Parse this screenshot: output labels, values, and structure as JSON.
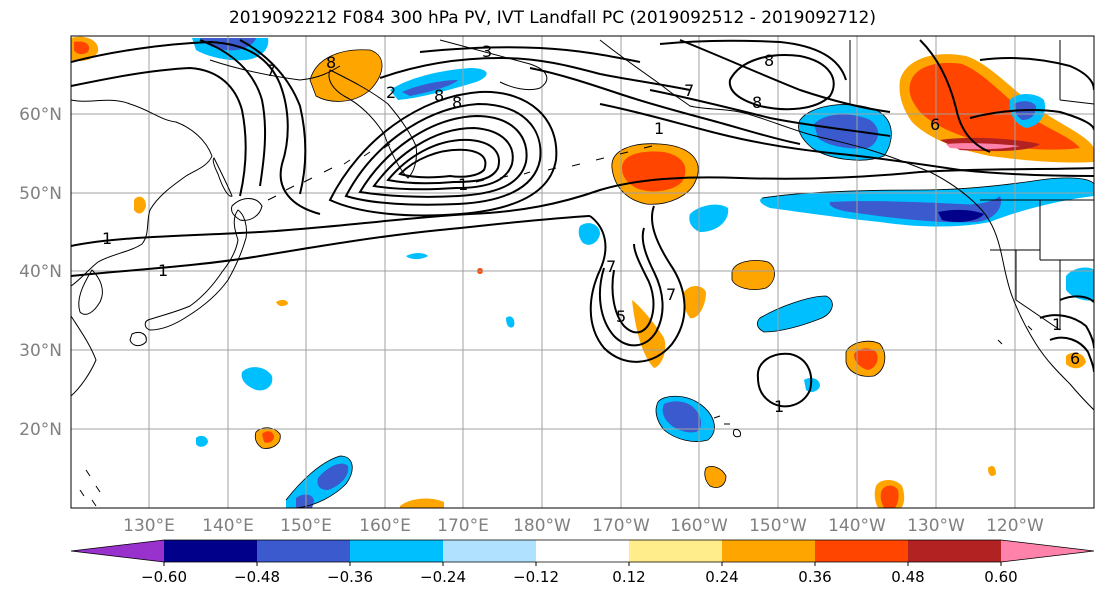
{
  "title": "2019092212 F084 300 hPa PV, IVT Landfall PC (2019092512 - 2019092712)",
  "lat_labels": [
    "60°N",
    "50°N",
    "40°N",
    "30°N",
    "20°N"
  ],
  "lon_labels": [
    "130°E",
    "140°E",
    "150°E",
    "160°E",
    "170°E",
    "180°W",
    "170°W",
    "160°W",
    "150°W",
    "140°W",
    "130°W",
    "120°W"
  ],
  "contour_labels": [
    {
      "text": "3"
    },
    {
      "text": "8"
    },
    {
      "text": "7"
    },
    {
      "text": "8"
    },
    {
      "text": "1"
    },
    {
      "text": "1"
    },
    {
      "text": "1"
    },
    {
      "text": "1"
    },
    {
      "text": "7"
    },
    {
      "text": "5"
    },
    {
      "text": "1"
    },
    {
      "text": "7"
    },
    {
      "text": "6"
    },
    {
      "text": "8"
    },
    {
      "text": "7"
    },
    {
      "text": "8"
    },
    {
      "text": "1"
    },
    {
      "text": "6"
    },
    {
      "text": "2"
    },
    {
      "text": "8"
    }
  ],
  "colorbar": {
    "colors": [
      "#9932cc",
      "#00008b",
      "#3a5acd",
      "#00bfff",
      "#b0e2ff",
      "#ffffff",
      "#ffec8b",
      "#ffa500",
      "#ff4500",
      "#b22222",
      "#ff82ab"
    ],
    "tick_labels": [
      "−0.60",
      "−0.48",
      "−0.36",
      "−0.24",
      "−0.12",
      "0.12",
      "0.24",
      "0.36",
      "0.48",
      "0.60"
    ]
  },
  "colors": {
    "land_line": "#000000",
    "grid": "#a0a0a0",
    "axis_label": "#808080"
  }
}
